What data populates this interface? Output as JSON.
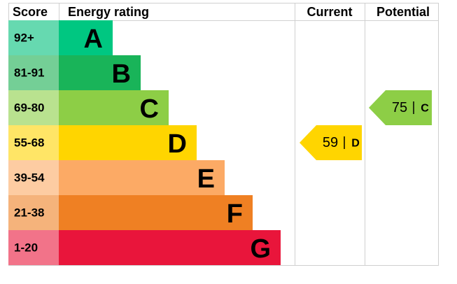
{
  "header": {
    "score": "Score",
    "rating": "Energy rating",
    "current": "Current",
    "potential": "Potential"
  },
  "bands": [
    {
      "score": "92+",
      "letter": "A"
    },
    {
      "score": "81-91",
      "letter": "B"
    },
    {
      "score": "69-80",
      "letter": "C"
    },
    {
      "score": "55-68",
      "letter": "D"
    },
    {
      "score": "39-54",
      "letter": "E"
    },
    {
      "score": "21-38",
      "letter": "F"
    },
    {
      "score": "1-20",
      "letter": "G"
    }
  ],
  "current": {
    "value": 59,
    "letter": "D"
  },
  "potential": {
    "value": 75,
    "letter": "C"
  }
}
